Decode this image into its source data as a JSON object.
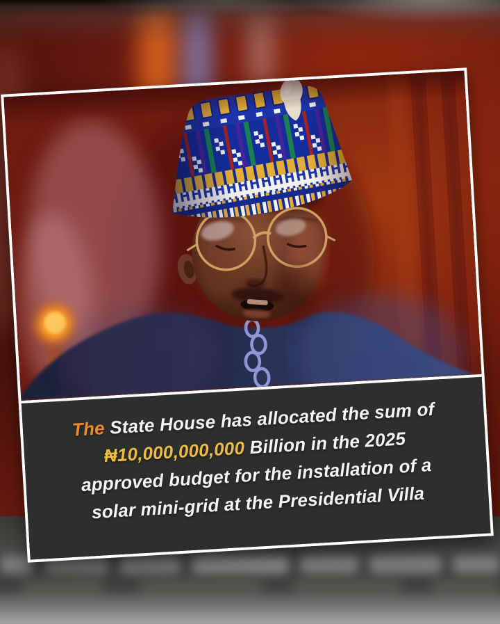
{
  "card": {
    "border_color": "#ffffff",
    "rotation_deg": -3.3
  },
  "photo": {
    "subject_elements": [
      "traditional-cap",
      "cap-tassel",
      "glasses",
      "face",
      "agbada-garment",
      "chain-embroidery",
      "curtain-background",
      "lamp-glow"
    ]
  },
  "caption": {
    "background_color": "#2d2f2c",
    "text_color": "#f4f4f2",
    "highlight_orange": "#ed8a2e",
    "highlight_yellow": "#eebc45",
    "lines": [
      {
        "segments": [
          {
            "text": "The",
            "color": "orange"
          },
          {
            "text": " State House has allocated the sum of",
            "color": "white"
          }
        ]
      },
      {
        "segments": [
          {
            "text": "₦10,000,000,000",
            "color": "yellow"
          },
          {
            "text": " Billion in the 2025",
            "color": "white"
          }
        ]
      },
      {
        "segments": [
          {
            "text": "approved budget for the installation of a",
            "color": "white"
          }
        ]
      },
      {
        "segments": [
          {
            "text": "solar mini-grid at the Presidential Villa",
            "color": "white"
          }
        ]
      }
    ]
  },
  "colors": {
    "backdrop_red": "#79200f",
    "strip_gray": "#454543",
    "bottom_fade_gray": "#9f9f9e"
  }
}
